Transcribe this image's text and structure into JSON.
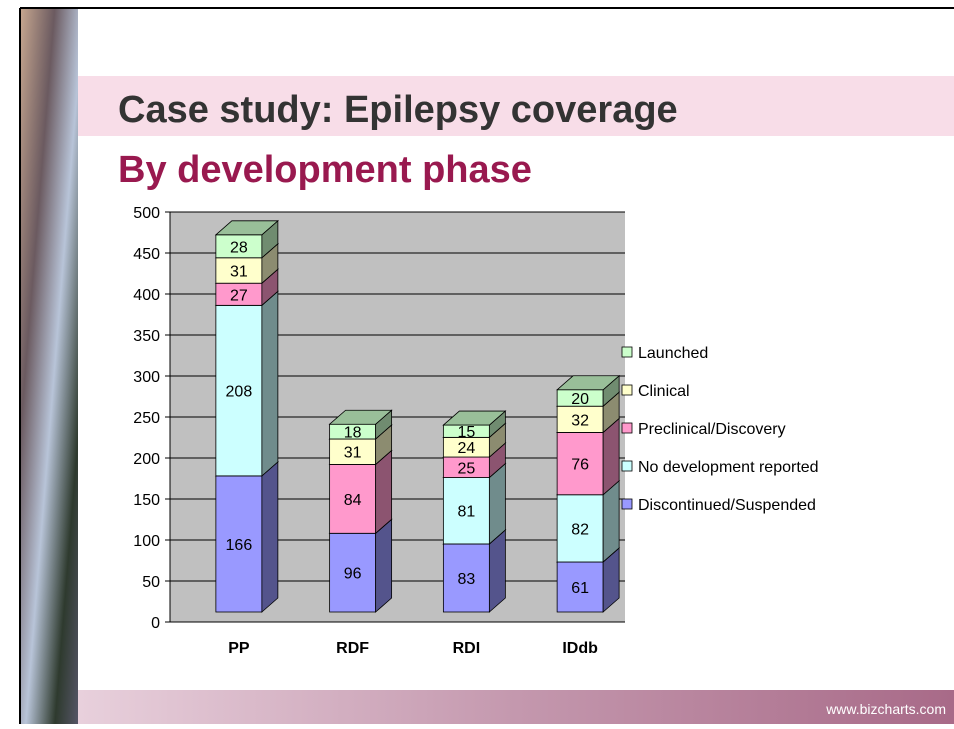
{
  "header": {
    "title": "Case study: Epilepsy coverage",
    "subtitle": "By development phase"
  },
  "footer": {
    "text": "www.bizcharts.com"
  },
  "chart_data": {
    "type": "bar",
    "stacked": true,
    "categories": [
      "PP",
      "RDF",
      "RDI",
      "IDdb"
    ],
    "series": [
      {
        "name": "Discontinued/Suspended",
        "color": "#9999ff",
        "values": [
          166,
          96,
          83,
          61
        ]
      },
      {
        "name": "No development reported",
        "color": "#ccffff",
        "values": [
          208,
          null,
          81,
          82
        ]
      },
      {
        "name": "Preclinical/Discovery",
        "color": "#ff99cc",
        "values": [
          27,
          84,
          25,
          76
        ]
      },
      {
        "name": "Clinical",
        "color": "#ffffcc",
        "values": [
          31,
          31,
          24,
          32
        ]
      },
      {
        "name": "Launched",
        "color": "#ccffcc",
        "values": [
          28,
          18,
          15,
          20
        ]
      }
    ],
    "ylim": [
      0,
      500
    ],
    "yticks": [
      0,
      50,
      100,
      150,
      200,
      250,
      300,
      350,
      400,
      450,
      500
    ],
    "grid": true,
    "legend": "right"
  }
}
